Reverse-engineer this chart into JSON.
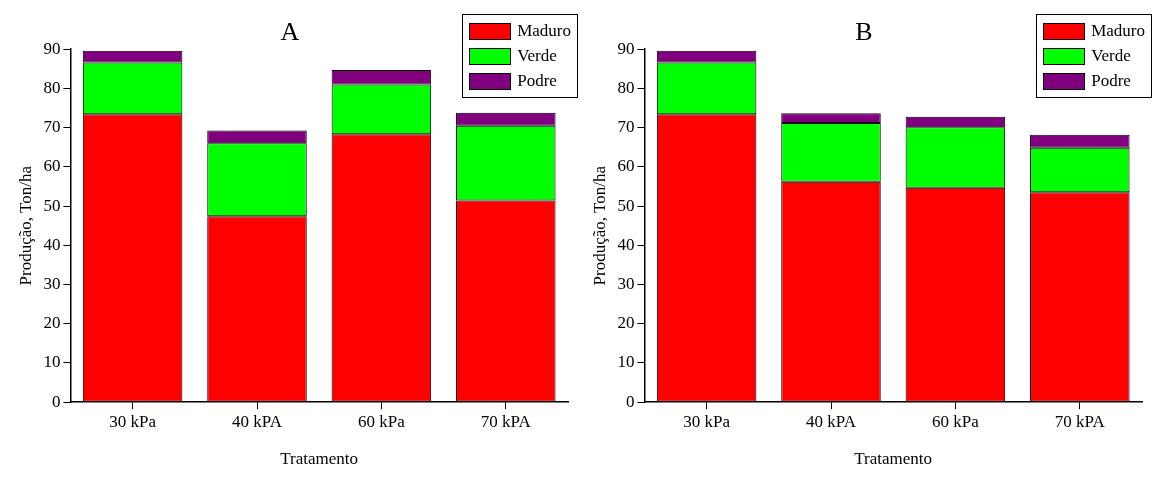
{
  "chart_data": [
    {
      "type": "bar",
      "title": "A",
      "xlabel": "Tratamento",
      "ylabel": "Produção, Ton/ha",
      "categories": [
        "30 kPa",
        "40 kPA",
        "60 kPa",
        "70 kPA"
      ],
      "stacked": true,
      "ylim": [
        0,
        90
      ],
      "yticks": [
        0,
        10,
        20,
        30,
        40,
        50,
        60,
        70,
        80,
        90
      ],
      "grid": false,
      "legend": "top right",
      "series": [
        {
          "name": "Maduro",
          "color": "#ff0000",
          "values": [
            73.4,
            47.4,
            68.3,
            51.4
          ]
        },
        {
          "name": "Verde",
          "color": "#00ff00",
          "values": [
            13.2,
            18.6,
            12.7,
            19.1
          ]
        },
        {
          "name": "Podre",
          "color": "#800080",
          "values": [
            3.0,
            3.3,
            3.7,
            3.3
          ]
        }
      ]
    },
    {
      "type": "bar",
      "title": "B",
      "xlabel": "Tratamento",
      "ylabel": "Produção, Ton/ha",
      "categories": [
        "30 kPa",
        "40 kPA",
        "60 kPa",
        "70 kPA"
      ],
      "stacked": true,
      "ylim": [
        0,
        90
      ],
      "yticks": [
        0,
        10,
        20,
        30,
        40,
        50,
        60,
        70,
        80,
        90
      ],
      "grid": false,
      "legend": "top right",
      "series": [
        {
          "name": "Maduro",
          "color": "#ff0000",
          "values": [
            73.4,
            56.2,
            54.7,
            53.5
          ]
        },
        {
          "name": "Verde",
          "color": "#00ff00",
          "values": [
            13.2,
            15.0,
            15.4,
            11.4
          ]
        },
        {
          "name": "Podre",
          "color": "#800080",
          "values": [
            3.0,
            2.5,
            2.7,
            3.3
          ]
        }
      ]
    }
  ]
}
